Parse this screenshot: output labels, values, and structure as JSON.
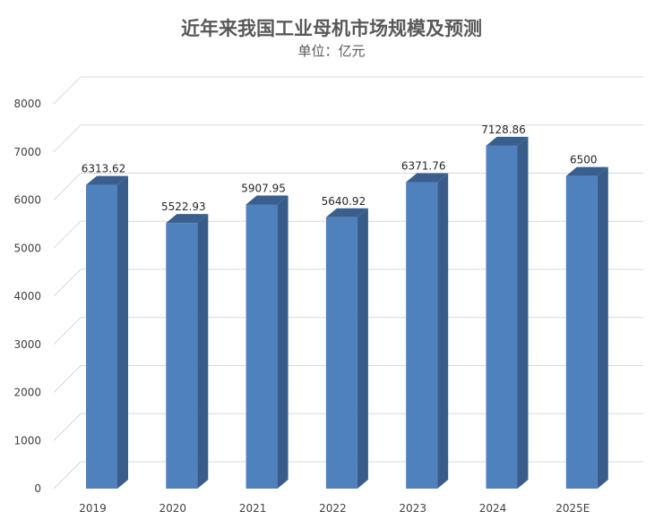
{
  "chart_data": {
    "type": "bar",
    "title": "近年来我国工业母机市场规模及预测",
    "subtitle": "单位：亿元",
    "categories": [
      "2019",
      "2020",
      "2021",
      "2022",
      "2023",
      "2024",
      "2025E"
    ],
    "values": [
      6313.62,
      5522.93,
      5907.95,
      5640.92,
      6371.76,
      7128.86,
      6500
    ],
    "data_labels": [
      "6313.62",
      "5522.93",
      "5907.95",
      "5640.92",
      "6371.76",
      "7128.86",
      "6500"
    ],
    "yticks": [
      "0",
      "1000",
      "2000",
      "3000",
      "4000",
      "5000",
      "6000",
      "7000",
      "8000"
    ],
    "ylim": [
      0,
      8000
    ],
    "grid": true,
    "style": "3d-column",
    "colors": {
      "front": "#4f81bd",
      "side": "#385d8a",
      "top": "#3a5f8e",
      "grid": "#d9d9d9"
    }
  }
}
